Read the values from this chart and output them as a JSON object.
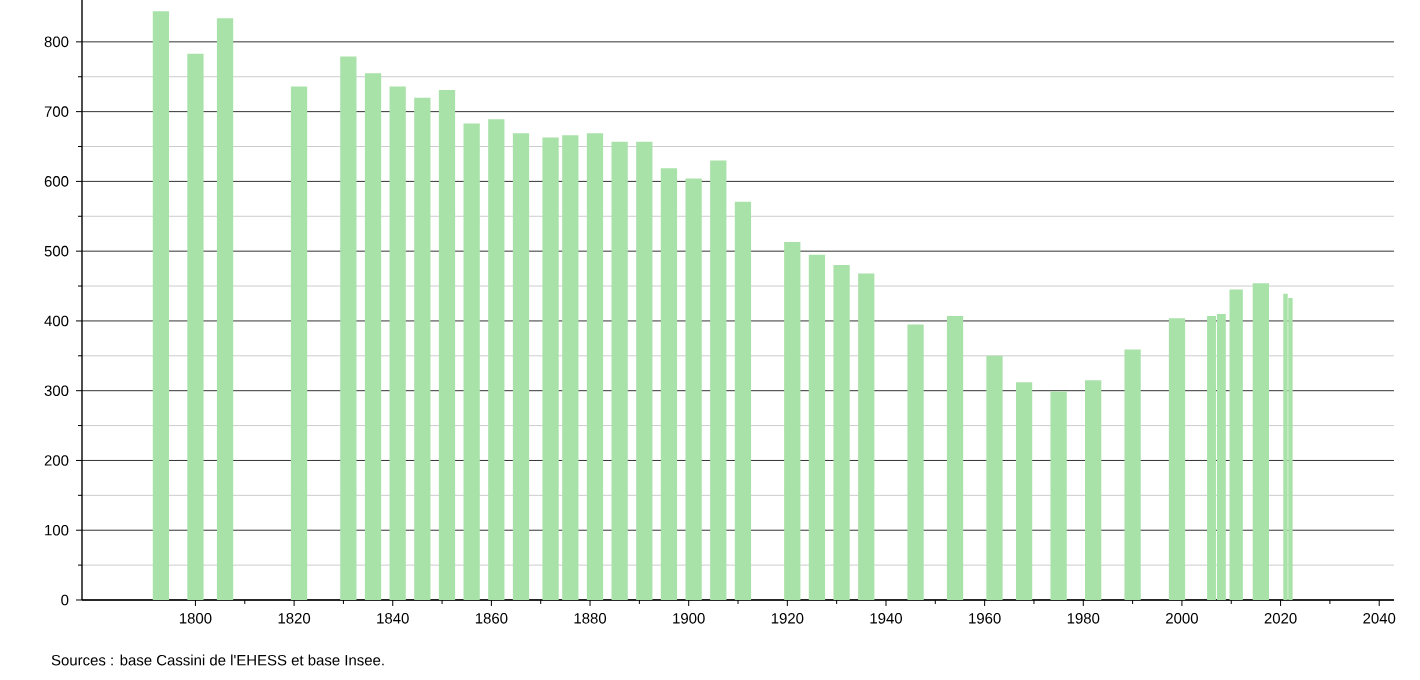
{
  "chart_data": {
    "type": "bar",
    "color": "#a8e2a8",
    "x": [
      1793,
      1800,
      1806,
      1821,
      1831,
      1836,
      1841,
      1846,
      1851,
      1856,
      1861,
      1866,
      1872,
      1876,
      1881,
      1886,
      1891,
      1896,
      1901,
      1906,
      1911,
      1921,
      1926,
      1931,
      1936,
      1946,
      1954,
      1962,
      1968,
      1975,
      1982,
      1990,
      1999,
      2006,
      2008,
      2011,
      2016,
      2021,
      2022
    ],
    "values": [
      844,
      783,
      834,
      736,
      779,
      755,
      736,
      720,
      731,
      683,
      689,
      669,
      663,
      666,
      669,
      657,
      657,
      619,
      604,
      630,
      571,
      513,
      495,
      480,
      468,
      395,
      407,
      350,
      312,
      299,
      315,
      359,
      404,
      407,
      410,
      445,
      454,
      439,
      433
    ],
    "xlim": [
      1777,
      2043
    ],
    "xticks": [
      1800,
      1820,
      1840,
      1860,
      1880,
      1900,
      1920,
      1940,
      1960,
      1980,
      2000,
      2020,
      2040
    ],
    "ylim": [
      0,
      860
    ],
    "yticks": [
      0,
      100,
      200,
      300,
      400,
      500,
      600,
      700,
      800
    ],
    "grid": "y",
    "annotations": [
      "Sources : base Cassini de l'EHESS et base Insee."
    ]
  }
}
